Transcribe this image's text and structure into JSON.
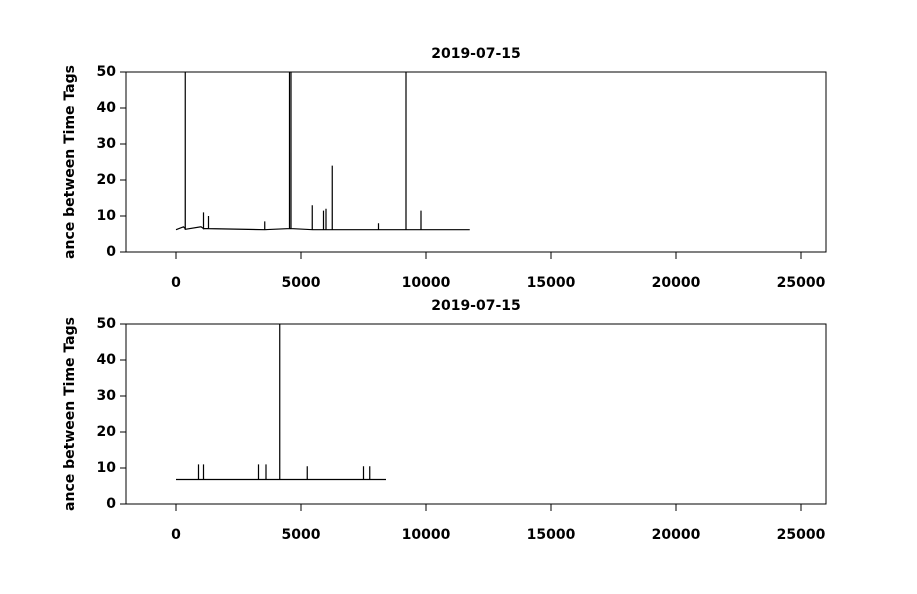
{
  "chart_data": [
    {
      "type": "line",
      "title": "2019-07-15",
      "y_label": "ance between Time Tags",
      "color": "#000000",
      "x": [
        0,
        300,
        369,
        370,
        371,
        1000,
        1099,
        1100,
        1101,
        1299,
        1300,
        1301,
        3549,
        3550,
        3551,
        4539,
        4540,
        4541,
        4599,
        4600,
        4601,
        5449,
        5450,
        5451,
        5899,
        5900,
        5901,
        5999,
        6000,
        6001,
        6249,
        6250,
        6251,
        8099,
        8100,
        8101,
        9199,
        9200,
        9201,
        9799,
        9800,
        9801,
        11750
      ],
      "values": [
        6.2,
        7,
        6.5,
        50,
        6.3,
        7,
        6.5,
        11,
        6.5,
        6.5,
        10,
        6.5,
        6.2,
        8.5,
        6.2,
        6.5,
        50,
        6.5,
        6.5,
        50,
        6.5,
        6.2,
        13,
        6.2,
        6.2,
        11.5,
        6.2,
        6.2,
        12,
        6.2,
        6.2,
        24,
        6.2,
        6.2,
        8,
        6.2,
        6.2,
        50,
        6.2,
        6.2,
        11.5,
        6.2,
        6.2
      ],
      "xlim": [
        -2000,
        26000
      ],
      "xticks": [
        0,
        5000,
        10000,
        15000,
        20000,
        25000
      ],
      "ylim": [
        0,
        50
      ],
      "yticks": [
        0,
        10,
        20,
        30,
        40,
        50
      ]
    },
    {
      "type": "line",
      "title": "2019-07-15",
      "y_label": "ance between Time Tags",
      "color": "#000000",
      "x": [
        0,
        899,
        900,
        901,
        1099,
        1100,
        1101,
        3299,
        3300,
        3301,
        3599,
        3600,
        3601,
        4149,
        4150,
        4151,
        5249,
        5250,
        5251,
        7499,
        7500,
        7501,
        7749,
        7750,
        7751,
        8400
      ],
      "values": [
        6.8,
        6.8,
        11,
        6.8,
        6.8,
        11,
        6.8,
        6.8,
        11,
        6.8,
        6.8,
        11,
        6.8,
        6.8,
        50,
        6.8,
        6.8,
        10.5,
        6.8,
        6.8,
        10.5,
        6.8,
        6.8,
        10.5,
        6.8,
        6.8
      ],
      "xlim": [
        -2000,
        26000
      ],
      "xticks": [
        0,
        5000,
        10000,
        15000,
        20000,
        25000
      ],
      "ylim": [
        0,
        50
      ],
      "yticks": [
        0,
        10,
        20,
        30,
        40,
        50
      ]
    }
  ]
}
